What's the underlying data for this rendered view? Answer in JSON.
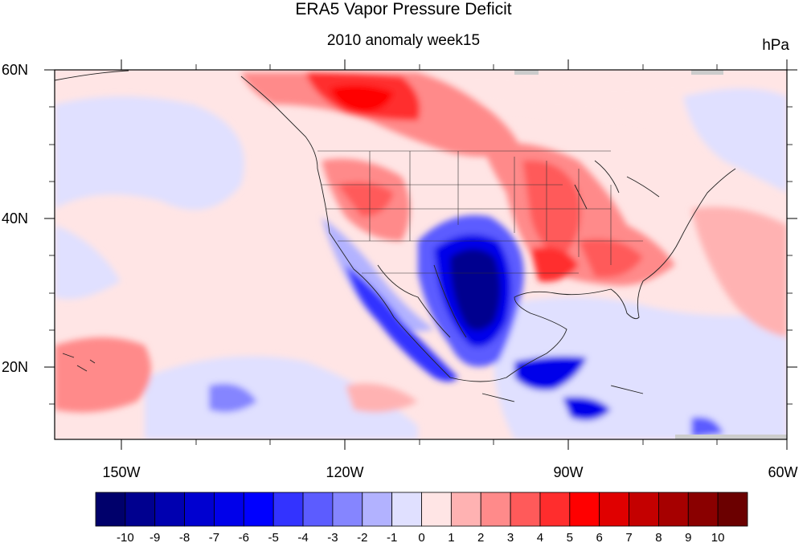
{
  "title": "ERA5 Vapor Pressure Deficit",
  "subtitle": "2010 anomaly week15",
  "units": "hPa",
  "map": {
    "region": "North America and eastern North Pacific",
    "lon_range": [
      -160,
      -60
    ],
    "lat_range": [
      10,
      60
    ],
    "features": [
      "coastlines",
      "US state boundaries",
      "country boundaries"
    ]
  },
  "axes": {
    "y_ticks": [
      {
        "value": 60,
        "label": "60N"
      },
      {
        "value": 40,
        "label": "40N"
      },
      {
        "value": 20,
        "label": "20N"
      }
    ],
    "x_ticks": [
      {
        "value": -150,
        "label": "150W"
      },
      {
        "value": -120,
        "label": "120W"
      },
      {
        "value": -90,
        "label": "90W"
      },
      {
        "value": -60,
        "label": "60W"
      }
    ]
  },
  "colorbar": {
    "labels": [
      "-10",
      "-9",
      "-8",
      "-7",
      "-6",
      "-5",
      "-4",
      "-3",
      "-2",
      "-1",
      "0",
      "1",
      "2",
      "3",
      "4",
      "5",
      "6",
      "7",
      "8",
      "9",
      "10"
    ],
    "colors": [
      "#00006b",
      "#00008f",
      "#0000b0",
      "#0000d0",
      "#0000ea",
      "#0000ff",
      "#3333ff",
      "#5c5cff",
      "#8585ff",
      "#b2b2ff",
      "#e0e0ff",
      "#ffe5e5",
      "#ffb2b2",
      "#ff8a8a",
      "#ff5a5a",
      "#ff2d2d",
      "#ff0000",
      "#e00000",
      "#c40000",
      "#a60000",
      "#8a0000",
      "#6b0000"
    ]
  },
  "anomaly_regions": [
    {
      "name": "south-central US and northern Mexico",
      "value": -9
    },
    {
      "name": "Mexican Pacific coast",
      "value": -5
    },
    {
      "name": "Central America",
      "value": -6
    },
    {
      "name": "western Canada",
      "value": 5
    },
    {
      "name": "northern Great Plains",
      "value": 4
    },
    {
      "name": "southeastern US",
      "value": 5
    },
    {
      "name": "northern Rockies",
      "value": 4
    },
    {
      "name": "northeastern Pacific",
      "value": 2
    }
  ]
}
